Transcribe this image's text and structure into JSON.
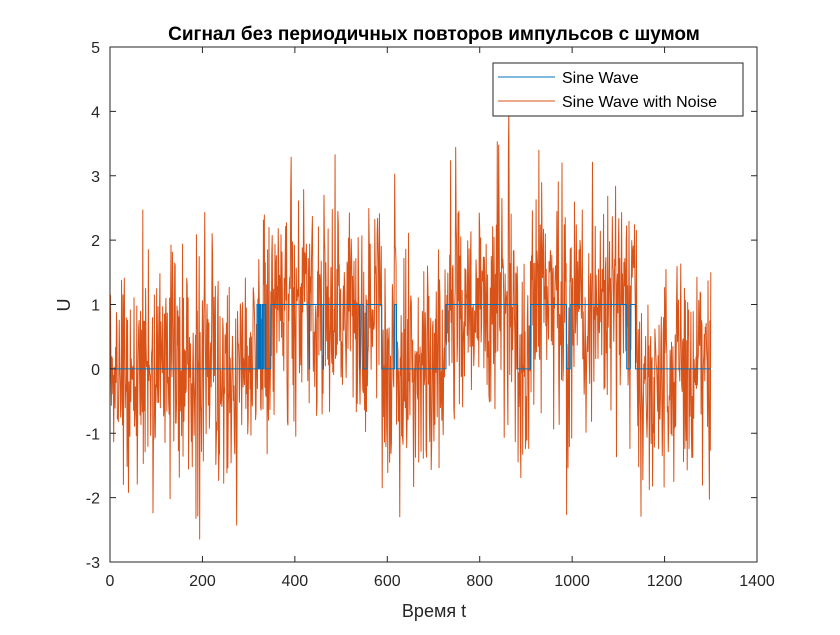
{
  "chart_data": {
    "type": "line",
    "title": "Сигнал без периодичных повторов импульсов с шумом",
    "xlabel": "Время t",
    "ylabel": "U",
    "xlim": [
      0,
      1400
    ],
    "ylim": [
      -3,
      5
    ],
    "x_ticks": [
      0,
      200,
      400,
      600,
      800,
      1000,
      1200,
      1400
    ],
    "y_ticks": [
      -3,
      -2,
      -1,
      0,
      1,
      2,
      3,
      4,
      5
    ],
    "grid": false,
    "legend_position": "top-right",
    "noise_std_approx": 0.9,
    "series": [
      {
        "name": "Sine Wave",
        "color": "#0072BD",
        "x": [
          0,
          318,
          318,
          321,
          321,
          323,
          323,
          324,
          324,
          326,
          326,
          327,
          327,
          330,
          330,
          331,
          331,
          332,
          332,
          335,
          335,
          336,
          336,
          337,
          337,
          348,
          348,
          349,
          349,
          431,
          431,
          432,
          432,
          461,
          461,
          462,
          462,
          540,
          540,
          541,
          541,
          548,
          548,
          556,
          556,
          588,
          588,
          616,
          616,
          620,
          620,
          727,
          727,
          737,
          737,
          882,
          882,
          910,
          910,
          988,
          988,
          996,
          996,
          1020,
          1020,
          1118,
          1118,
          1126,
          1126,
          1137,
          1137,
          1300
        ],
        "values": [
          0,
          0,
          1,
          1,
          0,
          0,
          1,
          1,
          0,
          0,
          1,
          1,
          0,
          0,
          1,
          1,
          0,
          0,
          1,
          1,
          0,
          0,
          1,
          1,
          0,
          0,
          1,
          1,
          1,
          1,
          0,
          0,
          1,
          1,
          0,
          0,
          1,
          1,
          0,
          0,
          1,
          1,
          0,
          0,
          1,
          1,
          0,
          0,
          1,
          1,
          0,
          0,
          1,
          1,
          1,
          1,
          0,
          0,
          1,
          1,
          0,
          0,
          1,
          1,
          1,
          1,
          0,
          0,
          1,
          1,
          0,
          0
        ]
      },
      {
        "name": "Sine Wave with Noise",
        "color": "#D95319",
        "x_start": 0,
        "x_step": 1,
        "x_end": 1300
      }
    ]
  },
  "legend": {
    "items": [
      {
        "label": "Sine Wave",
        "color": "#0072BD"
      },
      {
        "label": "Sine Wave with Noise",
        "color": "#D95319"
      }
    ]
  }
}
